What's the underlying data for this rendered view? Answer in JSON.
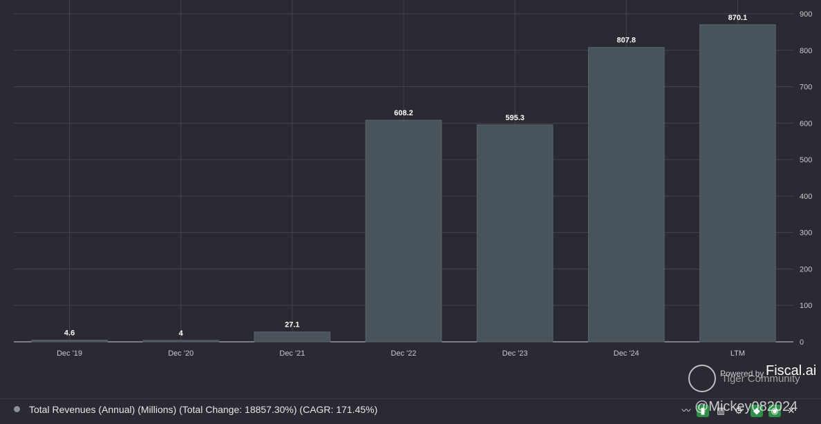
{
  "chart_data": {
    "type": "bar",
    "categories": [
      "Dec '19",
      "Dec '20",
      "Dec '21",
      "Dec '22",
      "Dec '23",
      "Dec '24",
      "LTM"
    ],
    "values": [
      4.6,
      4,
      27.1,
      608.2,
      595.3,
      807.8,
      870.1
    ],
    "data_labels": [
      "4.6",
      "4",
      "27.1",
      "608.2",
      "595.3",
      "807.8",
      "870.1"
    ],
    "ylim": [
      0,
      900
    ],
    "yticks": [
      0,
      100,
      200,
      300,
      400,
      500,
      600,
      700,
      800,
      900
    ],
    "y_axis_position": "right",
    "grid": true,
    "colors": {
      "bar": "#48535b",
      "background": "#2a2a33",
      "grid": "#42434d"
    }
  },
  "legend": {
    "text": "Total Revenues (Annual) (Millions) (Total Change: 18857.30%) (CAGR: 171.45%)",
    "dot_color": "#8d8f97"
  },
  "branding": {
    "powered_by": "Powered by",
    "brand": "Fiscal.ai",
    "watermark_community": "Tiger Community",
    "watermark_user": "@Mickey082024"
  },
  "toolbar": {
    "icons": [
      "trend-icon",
      "bar-chart-icon",
      "table-icon",
      "settings-icon",
      "tag-icon",
      "eye-icon",
      "close-icon"
    ],
    "close_label": "✕"
  }
}
